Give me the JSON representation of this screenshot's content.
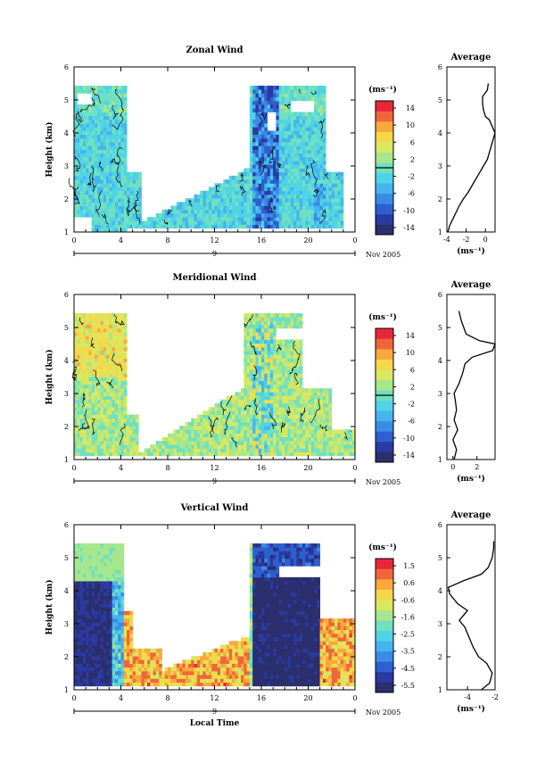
{
  "colors": {
    "colormap": [
      "#2b2f6e",
      "#2a3aa0",
      "#2e5fd0",
      "#3a8be6",
      "#45b4ee",
      "#4fd3e6",
      "#6fe0c0",
      "#a6e68c",
      "#d8e860",
      "#f5d84a",
      "#f8a83c",
      "#f0663a",
      "#e8283a"
    ],
    "contour": "#000000",
    "axis": "#000000"
  },
  "chart_data": [
    {
      "id": "zonal",
      "type": "heatmap",
      "title": "Zonal Wind",
      "xlabel": "",
      "ylabel": "Height (km)",
      "xticks": [
        "0",
        "4",
        "8",
        "12",
        "16",
        "20",
        "0"
      ],
      "yticks": [
        "1",
        "2",
        "3",
        "4",
        "5",
        "6"
      ],
      "xlim": [
        0,
        24
      ],
      "ylim": [
        1,
        6
      ],
      "date_ticks": [
        "9"
      ],
      "date_label": "Nov 2005",
      "colorbar": {
        "unit": "(ms⁻¹)",
        "ticks": [
          "14",
          "10",
          "6",
          "2",
          "-2",
          "-6",
          "-10",
          "-14"
        ],
        "range": [
          -16,
          16
        ]
      },
      "profile": {
        "title": "Average",
        "xlabel": "(ms⁻¹)",
        "xticks": [
          "-4",
          "-2",
          "0"
        ],
        "xlim": [
          -4,
          1
        ],
        "height": [
          1.0,
          1.2,
          1.5,
          1.8,
          2.0,
          2.2,
          2.5,
          2.8,
          3.0,
          3.2,
          3.5,
          3.7,
          3.9,
          4.0,
          4.2,
          4.4,
          4.5,
          4.7,
          4.9,
          5.1,
          5.3,
          5.5
        ],
        "values": [
          -3.9,
          -3.7,
          -3.2,
          -2.7,
          -2.3,
          -1.8,
          -1.2,
          -0.6,
          -0.2,
          0.2,
          0.5,
          0.7,
          0.9,
          1.0,
          0.7,
          0.4,
          0.0,
          -0.2,
          -0.3,
          -0.3,
          0.2,
          0.3
        ]
      }
    },
    {
      "id": "meridional",
      "type": "heatmap",
      "title": "Meridional Wind",
      "xlabel": "",
      "ylabel": "Height (km)",
      "xticks": [
        "0",
        "4",
        "8",
        "12",
        "16",
        "20",
        "0"
      ],
      "yticks": [
        "1",
        "2",
        "3",
        "4",
        "5",
        "6"
      ],
      "xlim": [
        0,
        24
      ],
      "ylim": [
        1,
        6
      ],
      "date_ticks": [
        "9"
      ],
      "date_label": "Nov 2005",
      "colorbar": {
        "unit": "(ms⁻¹)",
        "ticks": [
          "14",
          "10",
          "6",
          "2",
          "-2",
          "-6",
          "-10",
          "-14"
        ],
        "range": [
          -16,
          16
        ]
      },
      "profile": {
        "title": "Average",
        "xlabel": "(ms⁻¹)",
        "xticks": [
          "0",
          "2"
        ],
        "xlim": [
          -0.5,
          3.5
        ],
        "height": [
          1.0,
          1.3,
          1.6,
          1.9,
          2.2,
          2.5,
          2.8,
          3.0,
          3.3,
          3.6,
          3.9,
          4.1,
          4.3,
          4.5,
          4.6,
          4.8,
          5.0,
          5.2,
          5.5
        ],
        "values": [
          0.1,
          0.3,
          0.0,
          0.4,
          0.1,
          0.3,
          0.2,
          0.1,
          0.5,
          0.8,
          1.0,
          1.6,
          3.3,
          3.5,
          2.2,
          1.1,
          0.9,
          0.7,
          0.5
        ]
      }
    },
    {
      "id": "vertical",
      "type": "heatmap",
      "title": "Vertical Wind",
      "xlabel": "Local Time",
      "ylabel": "Height (km)",
      "xticks": [
        "0",
        "4",
        "8",
        "12",
        "16",
        "20",
        "0"
      ],
      "yticks": [
        "1",
        "2",
        "3",
        "4",
        "5",
        "6"
      ],
      "xlim": [
        0,
        24
      ],
      "ylim": [
        1,
        6
      ],
      "date_ticks": [
        "9"
      ],
      "date_label": "Nov 2005",
      "colorbar": {
        "unit": "(ms⁻¹)",
        "ticks": [
          "1.5",
          "0.6",
          "-0.6",
          "-1.6",
          "-2.5",
          "-3.5",
          "-4.5",
          "-5.5"
        ],
        "range": [
          -6,
          2
        ]
      },
      "profile": {
        "title": "Average",
        "xlabel": "(ms⁻¹)",
        "xticks": [
          "-4",
          "-2"
        ],
        "xlim": [
          -5.5,
          -2
        ],
        "height": [
          1.0,
          1.2,
          1.5,
          1.8,
          2.0,
          2.3,
          2.6,
          2.9,
          3.1,
          3.4,
          3.6,
          3.9,
          4.1,
          4.3,
          4.5,
          4.7,
          5.0,
          5.3,
          5.5
        ],
        "values": [
          -3.0,
          -2.4,
          -2.2,
          -2.6,
          -3.2,
          -3.6,
          -3.9,
          -4.2,
          -4.6,
          -4.0,
          -4.7,
          -5.3,
          -5.4,
          -4.3,
          -3.0,
          -2.5,
          -2.2,
          -2.1,
          -2.1
        ]
      }
    }
  ]
}
